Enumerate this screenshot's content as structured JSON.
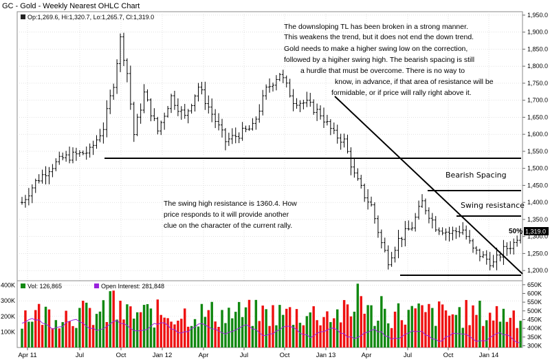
{
  "chart_data": {
    "type": "ohlc",
    "title": "GC - Gold - Weekly Nearest OHLC Chart",
    "legend_price": "Op:1,269.6, Hi:1,320.7, Lo:1,265.7, Cl:1,319.0",
    "y_ticks": [
      1200,
      1250,
      1300,
      1350,
      1400,
      1450,
      1500,
      1550,
      1600,
      1650,
      1700,
      1750,
      1800,
      1850,
      1900,
      1950
    ],
    "y_tick_labels": [
      "1,200.0",
      "1,250.0",
      "1,300.0",
      "1,350.0",
      "1,400.0",
      "1,450.0",
      "1,500.0",
      "1,550.0",
      "1,600.0",
      "1,650.0",
      "1,700.0",
      "1,750.0",
      "1,800.0",
      "1,850.0",
      "1,900.0",
      "1,950.0"
    ],
    "ylim": [
      1170,
      1960
    ],
    "x_labels": [
      "Apr 11",
      "Jul",
      "Oct",
      "Jan 12",
      "Apr",
      "Jul",
      "Oct",
      "Jan 13",
      "Apr",
      "Jul",
      "Oct",
      "Jan 14"
    ],
    "last_close_label": "1,319.0",
    "fifty_pct_label": "50%",
    "anchors": [
      {
        "w": 0,
        "p": 1400
      },
      {
        "w": 4,
        "p": 1460
      },
      {
        "w": 8,
        "p": 1500
      },
      {
        "w": 12,
        "p": 1530
      },
      {
        "w": 16,
        "p": 1540
      },
      {
        "w": 20,
        "p": 1550
      },
      {
        "w": 24,
        "p": 1620
      },
      {
        "w": 27,
        "p": 1750
      },
      {
        "w": 29,
        "p": 1880
      },
      {
        "w": 31,
        "p": 1780
      },
      {
        "w": 33,
        "p": 1600
      },
      {
        "w": 36,
        "p": 1720
      },
      {
        "w": 40,
        "p": 1610
      },
      {
        "w": 44,
        "p": 1710
      },
      {
        "w": 48,
        "p": 1650
      },
      {
        "w": 52,
        "p": 1740
      },
      {
        "w": 56,
        "p": 1660
      },
      {
        "w": 60,
        "p": 1580
      },
      {
        "w": 64,
        "p": 1600
      },
      {
        "w": 68,
        "p": 1620
      },
      {
        "w": 72,
        "p": 1730
      },
      {
        "w": 76,
        "p": 1780
      },
      {
        "w": 80,
        "p": 1700
      },
      {
        "w": 84,
        "p": 1690
      },
      {
        "w": 88,
        "p": 1660
      },
      {
        "w": 92,
        "p": 1600
      },
      {
        "w": 95,
        "p": 1580
      },
      {
        "w": 98,
        "p": 1480
      },
      {
        "w": 101,
        "p": 1420
      },
      {
        "w": 103,
        "p": 1390
      },
      {
        "w": 106,
        "p": 1280
      },
      {
        "w": 108,
        "p": 1230
      },
      {
        "w": 111,
        "p": 1290
      },
      {
        "w": 115,
        "p": 1330
      },
      {
        "w": 118,
        "p": 1400
      },
      {
        "w": 122,
        "p": 1330
      },
      {
        "w": 126,
        "p": 1310
      },
      {
        "w": 130,
        "p": 1320
      },
      {
        "w": 133,
        "p": 1260
      },
      {
        "w": 136,
        "p": 1240
      },
      {
        "w": 139,
        "p": 1220
      },
      {
        "w": 142,
        "p": 1260
      },
      {
        "w": 145,
        "p": 1280
      },
      {
        "w": 147,
        "p": 1319
      }
    ],
    "volume_ticks": [
      100000,
      200000,
      300000,
      400000
    ],
    "volume_tick_labels": [
      "100K",
      "200K",
      "300K",
      "400K"
    ],
    "volume_ylim": [
      0,
      420000
    ],
    "oi_ticks": [
      300000,
      350000,
      400000,
      450000,
      500000,
      550000,
      600000,
      650000
    ],
    "oi_tick_labels": [
      "300K",
      "350K",
      "400K",
      "450K",
      "500K",
      "550K",
      "600K",
      "650K"
    ],
    "oi_ylim": [
      290000,
      665000
    ],
    "vol_legend": "Vol: 126,865",
    "oi_legend": "Open Interest: 281,848",
    "volume_up_color": "#118811",
    "volume_down_color": "#ee1111",
    "oi_line_color": "#9922dd",
    "annotations": {
      "top_note": [
        "The downsloping TL has been broken in a strong manner.",
        "This weakens the trend, but it does not end the down trend.",
        "Gold needs to make a higher swing low on the correction,",
        "followed by a higiher swing high.  The bearish spacing is still",
        "a hurdle that must be overcome.  There is no way to",
        "know, in advance, if that area of resistance will be",
        "formidable, or if price will rally right above it."
      ],
      "middle_note": [
        "The swing high resistance is 1360.4.  How",
        "price responds to it will provide another",
        "clue on the character of the current rally."
      ],
      "bearish_spacing": "Bearish Spacing",
      "swing_resistance": "Swing resistance"
    }
  }
}
